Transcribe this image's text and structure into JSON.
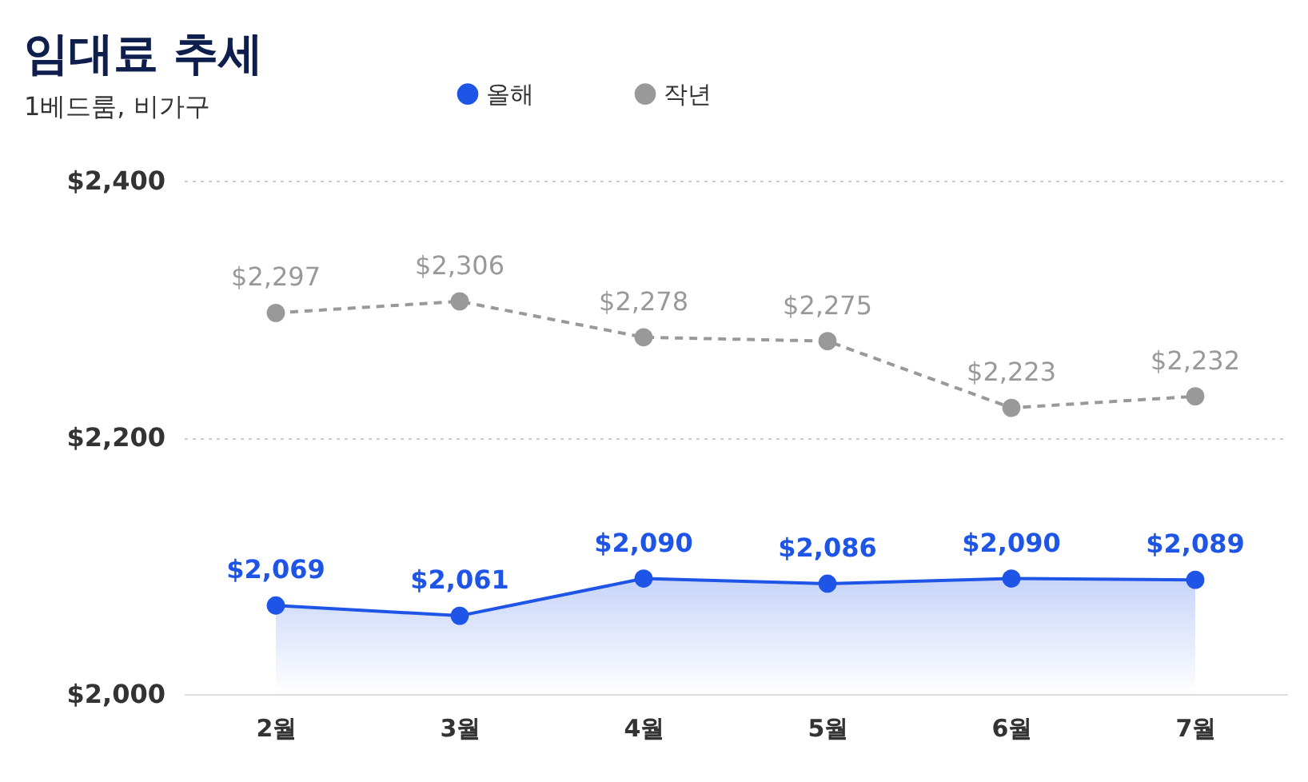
{
  "chart_data": {
    "type": "line",
    "title": "임대료 추세",
    "subtitle": "1베드룸, 비가구",
    "categories": [
      "2월",
      "3월",
      "4월",
      "5월",
      "6월",
      "7월"
    ],
    "series": [
      {
        "name": "올해",
        "type": "area",
        "color": "#1f55e6",
        "values": [
          2069,
          2061,
          2090,
          2086,
          2090,
          2089
        ],
        "value_labels": [
          "$2,069",
          "$2,061",
          "$2,090",
          "$2,086",
          "$2,090",
          "$2,089"
        ]
      },
      {
        "name": "작년",
        "line_style": "dashed",
        "color": "#999999",
        "values": [
          2297,
          2306,
          2278,
          2275,
          2223,
          2232
        ],
        "value_labels": [
          "$2,297",
          "$2,306",
          "$2,278",
          "$2,275",
          "$2,223",
          "$2,232"
        ]
      }
    ],
    "ylim": [
      2000,
      2400
    ],
    "yticks": [
      {
        "value": 2000,
        "label": "$2,000"
      },
      {
        "value": 2200,
        "label": "$2,200"
      },
      {
        "value": 2400,
        "label": "$2,400"
      }
    ],
    "grid": "y",
    "legend": "top",
    "marker": "circle"
  }
}
